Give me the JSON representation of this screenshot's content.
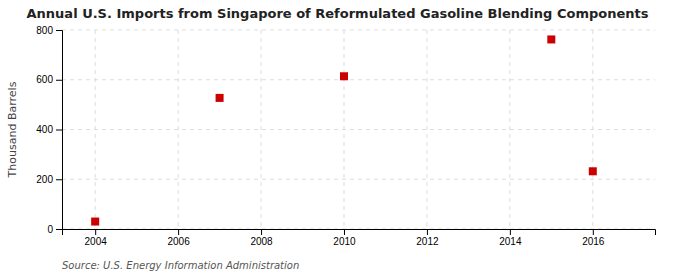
{
  "chart_data": {
    "type": "scatter",
    "title": "Annual U.S. Imports from Singapore of Reformulated Gasoline Blending Components",
    "ylabel": "Thousand Barrels",
    "source": "Source: U.S. Energy Information Administration",
    "x": [
      2004,
      2007,
      2010,
      2015,
      2016
    ],
    "values": [
      30,
      527,
      614,
      762,
      232
    ],
    "color": "#cc0000",
    "marker": "square",
    "xlim": [
      2003.2,
      2017.5
    ],
    "ylim": [
      0,
      800
    ],
    "xticks": [
      2004,
      2006,
      2008,
      2010,
      2012,
      2014,
      2016
    ],
    "yticks": [
      0,
      200,
      400,
      600,
      800
    ],
    "grid": true
  }
}
